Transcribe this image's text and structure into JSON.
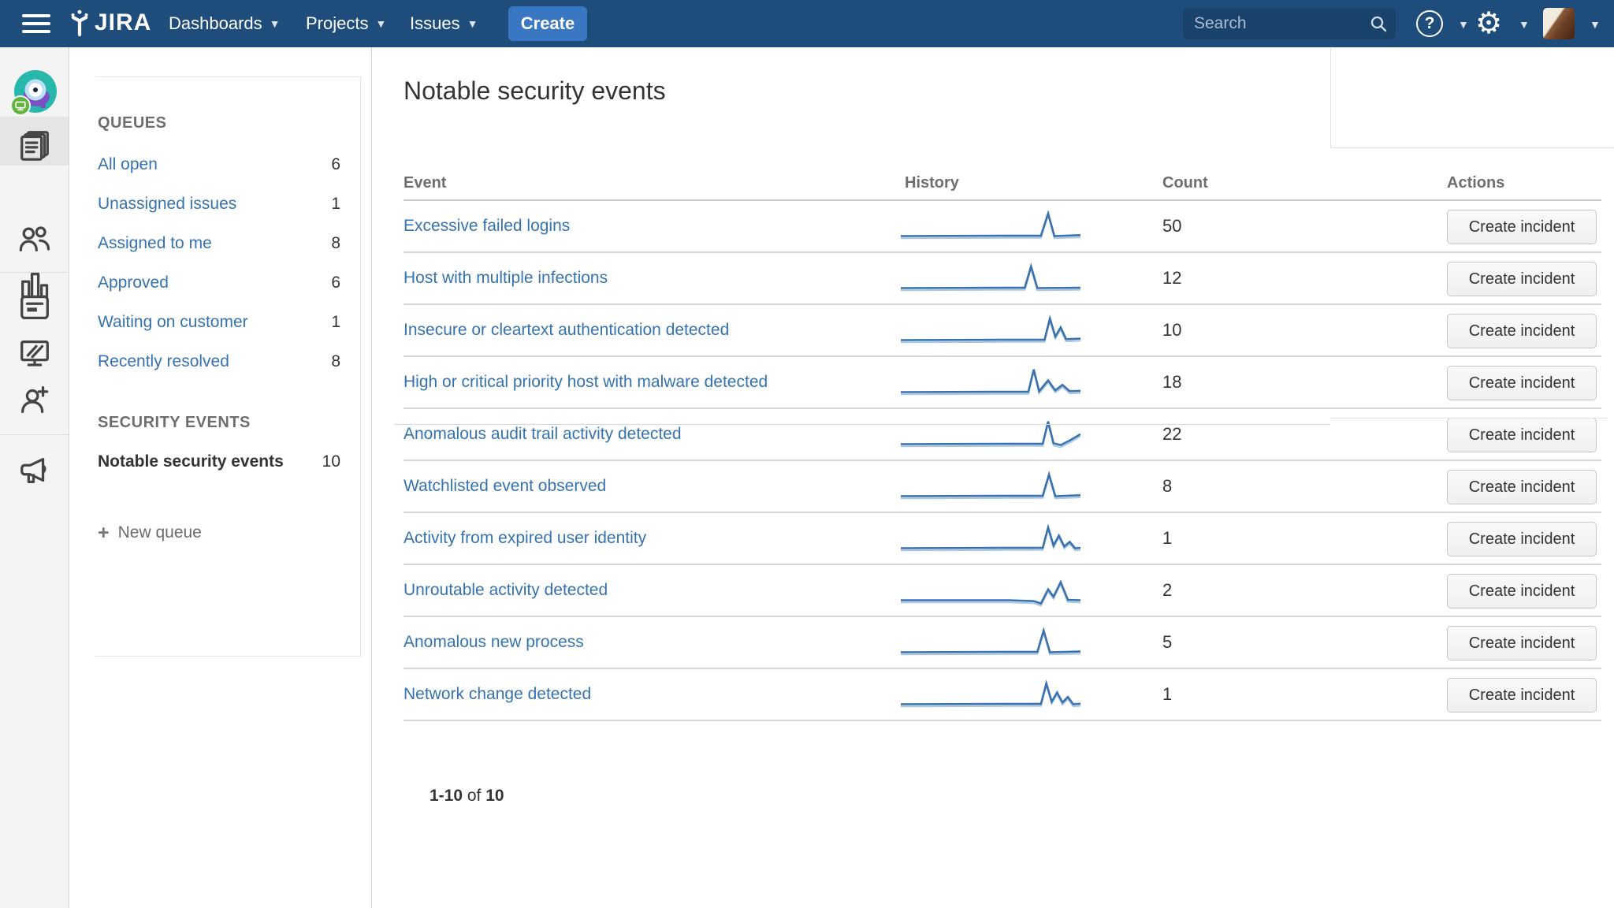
{
  "colors": {
    "navbar_bg": "#1e4d7b",
    "create_button": "#3a77c2",
    "search_bg": "#19436b",
    "link_blue": "#3572b0",
    "text_dark": "#333333",
    "header_gray": "#6e6e6e",
    "sidebar_bg": "#f4f4f4",
    "sparkline_blue": "#3a72ad",
    "row_border": "#d6d6d6"
  },
  "navbar": {
    "logo_text": "JIRA",
    "menu": [
      {
        "label": "Dashboards"
      },
      {
        "label": "Projects"
      },
      {
        "label": "Issues"
      }
    ],
    "create_label": "Create",
    "search_placeholder": "Search",
    "help_label": "?"
  },
  "sidebar_icons": [
    "project-avatar",
    "queues",
    "customers",
    "reports",
    "articles",
    "displays",
    "invite-people",
    "announcements"
  ],
  "queues_panel": {
    "queues_header": "QUEUES",
    "queues": [
      {
        "label": "All open",
        "count": 6
      },
      {
        "label": "Unassigned issues",
        "count": 1
      },
      {
        "label": "Assigned to me",
        "count": 8
      },
      {
        "label": "Approved",
        "count": 6
      },
      {
        "label": "Waiting on customer",
        "count": 1
      },
      {
        "label": "Recently resolved",
        "count": 8
      }
    ],
    "security_header": "SECURITY EVENTS",
    "security_queues": [
      {
        "label": "Notable security events",
        "count": 10,
        "active": true
      }
    ],
    "new_queue_label": "New queue"
  },
  "main": {
    "title": "Notable security events",
    "table": {
      "columns": [
        "Event",
        "History",
        "Count",
        "Actions"
      ],
      "action_label": "Create incident",
      "rows": [
        {
          "event": "Excessive failed logins",
          "count": 50,
          "spark": [
            [
              0,
              15
            ],
            [
              60,
              14.8
            ],
            [
              78,
              14.8
            ],
            [
              82,
              2.5
            ],
            [
              85.5,
              15
            ],
            [
              100,
              14.5
            ]
          ]
        },
        {
          "event": "Host with multiple infections",
          "count": 12,
          "spark": [
            [
              0,
              15
            ],
            [
              55,
              14.8
            ],
            [
              69,
              14.8
            ],
            [
              72.5,
              3
            ],
            [
              76,
              15
            ],
            [
              100,
              14.8
            ]
          ]
        },
        {
          "event": "Insecure or cleartext authentication detected",
          "count": 10,
          "spark": [
            [
              0,
              15
            ],
            [
              62,
              14.8
            ],
            [
              80,
              14.8
            ],
            [
              83,
              3
            ],
            [
              86,
              13
            ],
            [
              89,
              8
            ],
            [
              92,
              14.5
            ],
            [
              100,
              14.2
            ]
          ]
        },
        {
          "event": "High or critical priority host with malware detected",
          "count": 18,
          "spark": [
            [
              0,
              15
            ],
            [
              55,
              14.8
            ],
            [
              71,
              14.8
            ],
            [
              74,
              2.5
            ],
            [
              77,
              14.5
            ],
            [
              82,
              8.5
            ],
            [
              86,
              14
            ],
            [
              90,
              11
            ],
            [
              94,
              14.5
            ],
            [
              100,
              14.3
            ]
          ]
        },
        {
          "event": "Anomalous audit trail activity detected",
          "count": 22,
          "spark": [
            [
              0,
              15
            ],
            [
              62,
              14.8
            ],
            [
              79,
              14.8
            ],
            [
              82,
              2.5
            ],
            [
              85,
              14.5
            ],
            [
              89,
              15.5
            ],
            [
              94,
              13
            ],
            [
              100,
              9.5
            ]
          ]
        },
        {
          "event": "Watchlisted event observed",
          "count": 8,
          "spark": [
            [
              0,
              15
            ],
            [
              60,
              14.8
            ],
            [
              79,
              14.8
            ],
            [
              82.5,
              3
            ],
            [
              86,
              15
            ],
            [
              100,
              14.5
            ]
          ]
        },
        {
          "event": "Activity from expired user identity",
          "count": 1,
          "spark": [
            [
              0,
              15
            ],
            [
              58,
              14.8
            ],
            [
              79,
              14.8
            ],
            [
              82,
              3.5
            ],
            [
              85,
              13.5
            ],
            [
              88,
              8
            ],
            [
              91,
              14
            ],
            [
              94,
              11.5
            ],
            [
              97,
              15
            ],
            [
              100,
              14.8
            ]
          ]
        },
        {
          "event": "Unroutable activity detected",
          "count": 2,
          "spark": [
            [
              0,
              15
            ],
            [
              60,
              15
            ],
            [
              74,
              15.5
            ],
            [
              78,
              16.8
            ],
            [
              82,
              9
            ],
            [
              85,
              13
            ],
            [
              89,
              5
            ],
            [
              93,
              14.8
            ],
            [
              100,
              15
            ]
          ]
        },
        {
          "event": "Anomalous new process",
          "count": 5,
          "spark": [
            [
              0,
              15
            ],
            [
              58,
              14.8
            ],
            [
              76,
              14.8
            ],
            [
              79.5,
              3
            ],
            [
              83,
              15
            ],
            [
              100,
              14.6
            ]
          ]
        },
        {
          "event": "Network change detected",
          "count": 1,
          "spark": [
            [
              0,
              15
            ],
            [
              58,
              14.8
            ],
            [
              78,
              14.8
            ],
            [
              81,
              3.5
            ],
            [
              84,
              13.5
            ],
            [
              87,
              8.5
            ],
            [
              90,
              14
            ],
            [
              93,
              11
            ],
            [
              96,
              15
            ],
            [
              100,
              14.7
            ]
          ]
        }
      ]
    },
    "pagination": {
      "range": "1-10",
      "of": "of",
      "total": "10"
    }
  }
}
